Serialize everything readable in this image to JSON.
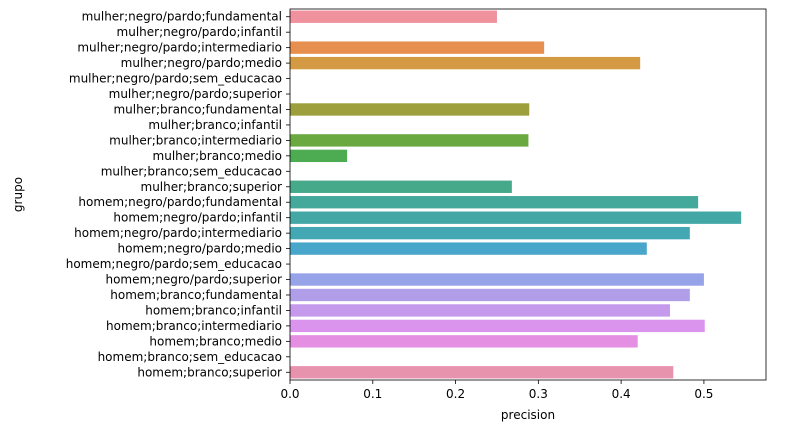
{
  "chart_data": {
    "type": "bar",
    "orientation": "horizontal",
    "xlabel": "precision",
    "ylabel": "grupo",
    "xlim": [
      0,
      0.575
    ],
    "xticks": [
      "0.0",
      "0.1",
      "0.2",
      "0.3",
      "0.4",
      "0.5"
    ],
    "grid": false,
    "categories": [
      "mulher;negro/pardo;fundamental",
      "mulher;negro/pardo;infantil",
      "mulher;negro/pardo;intermediario",
      "mulher;negro/pardo;medio",
      "mulher;negro/pardo;sem_educacao",
      "mulher;negro/pardo;superior",
      "mulher;branco;fundamental",
      "mulher;branco;infantil",
      "mulher;branco;intermediario",
      "mulher;branco;medio",
      "mulher;branco;sem_educacao",
      "mulher;branco;superior",
      "homem;negro/pardo;fundamental",
      "homem;negro/pardo;infantil",
      "homem;negro/pardo;intermediario",
      "homem;negro/pardo;medio",
      "homem;negro/pardo;sem_educacao",
      "homem;negro/pardo;superior",
      "homem;branco;fundamental",
      "homem;branco;infantil",
      "homem;branco;intermediario",
      "homem;branco;medio",
      "homem;branco;sem_educacao",
      "homem;branco;superior"
    ],
    "values": [
      0.25,
      0,
      0.307,
      0.423,
      0,
      0,
      0.289,
      0,
      0.288,
      0.069,
      0,
      0.268,
      0.493,
      0.545,
      0.483,
      0.431,
      0,
      0.5,
      0.483,
      0.459,
      0.501,
      0.42,
      0,
      0.463
    ],
    "colors": [
      "#f0919e",
      "#f08f80",
      "#e78f4f",
      "#d39a43",
      "#c0a33f",
      "#ae9d3a",
      "#9c9f3b",
      "#86a43d",
      "#6aa840",
      "#4dab52",
      "#48aa73",
      "#46a98a",
      "#44a89a",
      "#43a7a6",
      "#44a8b4",
      "#49a6cb",
      "#6fa0e0",
      "#97a3e8",
      "#b09ee8",
      "#c59aec",
      "#da94ee",
      "#e58fe2",
      "#e78fc5",
      "#e893ad"
    ]
  }
}
